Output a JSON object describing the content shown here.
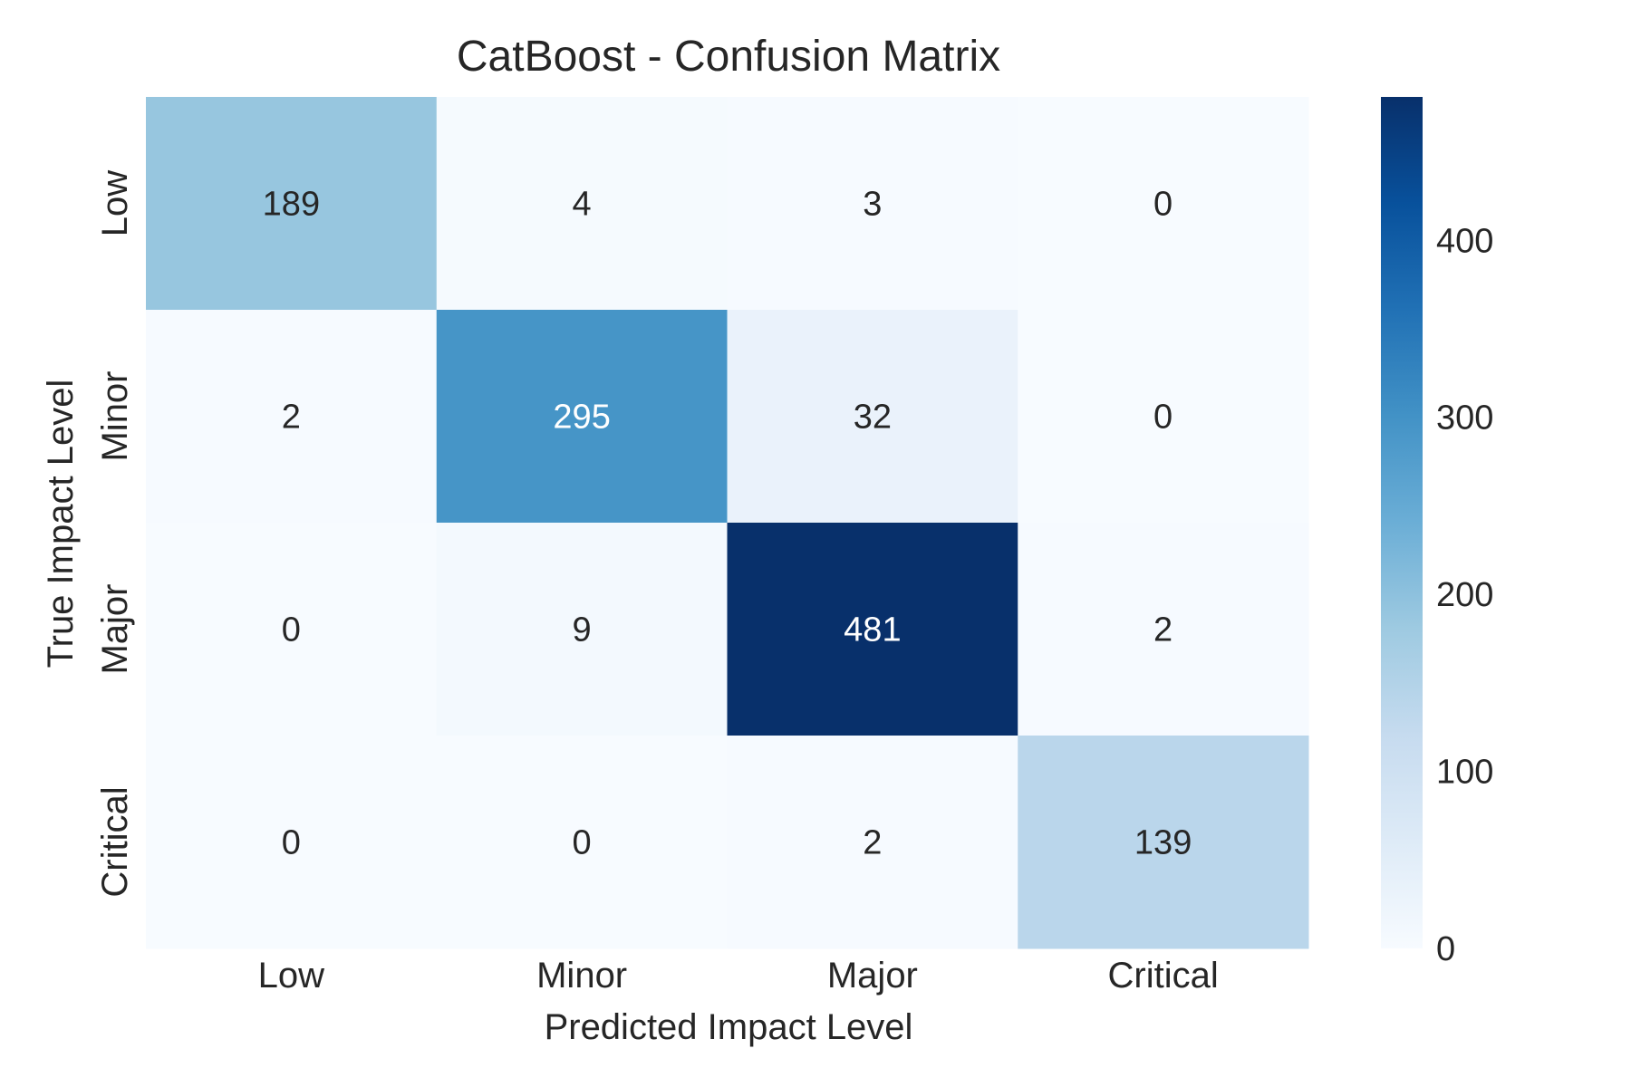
{
  "chart_data": {
    "type": "heatmap",
    "title": "CatBoost - Confusion Matrix",
    "xlabel": "Predicted Impact Level",
    "ylabel": "True Impact Level",
    "x_categories": [
      "Low",
      "Minor",
      "Major",
      "Critical"
    ],
    "y_categories": [
      "Low",
      "Minor",
      "Major",
      "Critical"
    ],
    "values": [
      [
        189,
        4,
        3,
        0
      ],
      [
        2,
        295,
        32,
        0
      ],
      [
        0,
        9,
        481,
        2
      ],
      [
        0,
        0,
        2,
        139
      ]
    ],
    "colormap": "Blues",
    "colorbar": {
      "range": [
        0,
        481
      ],
      "ticks": [
        0,
        100,
        200,
        300,
        400
      ],
      "tick_labels": [
        "0",
        "100",
        "200",
        "300",
        "400"
      ]
    },
    "grid": false,
    "legend": "colorbar-right"
  }
}
